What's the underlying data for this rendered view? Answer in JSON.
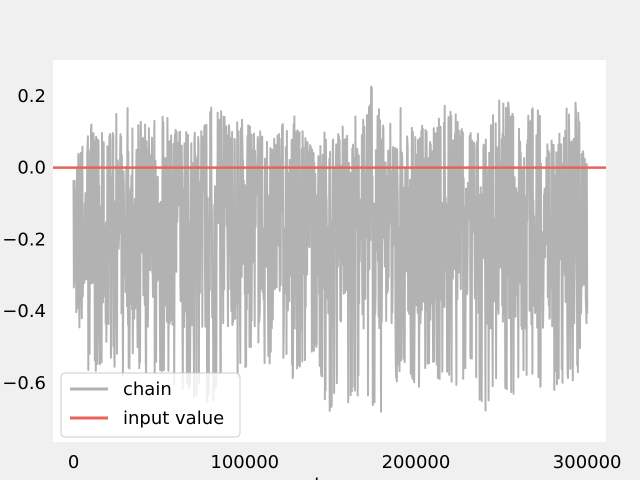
{
  "chart_data": {
    "type": "line",
    "title": "",
    "xlabel": "steps",
    "ylabel": "",
    "xlim": [
      -12000,
      311000
    ],
    "ylim": [
      -0.765,
      0.3
    ],
    "grid": false,
    "legend_position": "lower-left",
    "x_ticks": [
      0,
      100000,
      200000,
      300000
    ],
    "y_ticks": [
      0.2,
      0.0,
      -0.2,
      -0.4,
      -0.6
    ],
    "x_tick_labels": [
      "0",
      "100000",
      "200000",
      "300000"
    ],
    "y_tick_labels": [
      "0.2",
      "0.0",
      "−0.2",
      "−0.4",
      "−0.6"
    ],
    "series": [
      {
        "name": "chain",
        "color": "#b2b2b2",
        "x_range": [
          0,
          300000
        ],
        "typical_range": [
          -0.45,
          0.1
        ],
        "extreme_range": [
          -0.72,
          0.26
        ],
        "peak_highs": [
          [
            1500,
            0.02
          ],
          [
            8000,
            0.11
          ],
          [
            15000,
            0.14
          ],
          [
            22000,
            0.09
          ],
          [
            28000,
            0.21
          ],
          [
            35000,
            0.14
          ],
          [
            44000,
            0.12
          ],
          [
            52000,
            0.18
          ],
          [
            58000,
            0.13
          ],
          [
            66000,
            0.1
          ],
          [
            75000,
            0.12
          ],
          [
            82000,
            0.19
          ],
          [
            90000,
            0.13
          ],
          [
            98000,
            0.14
          ],
          [
            107000,
            0.12
          ],
          [
            112000,
            0.1
          ],
          [
            120000,
            0.11
          ],
          [
            128000,
            0.18
          ],
          [
            135000,
            0.1
          ],
          [
            142000,
            0.02
          ],
          [
            148000,
            0.13
          ],
          [
            155000,
            0.1
          ],
          [
            162000,
            0.19
          ],
          [
            168000,
            0.11
          ],
          [
            175000,
            0.26
          ],
          [
            182000,
            0.1
          ],
          [
            188000,
            0.22
          ],
          [
            195000,
            0.12
          ],
          [
            202000,
            0.12
          ],
          [
            210000,
            0.13
          ],
          [
            218000,
            0.18
          ],
          [
            225000,
            0.14
          ],
          [
            232000,
            0.1
          ],
          [
            240000,
            0.12
          ],
          [
            248000,
            0.19
          ],
          [
            255000,
            0.2
          ],
          [
            262000,
            0.12
          ],
          [
            270000,
            0.18
          ],
          [
            278000,
            0.07
          ],
          [
            285000,
            0.1
          ],
          [
            292000,
            0.26
          ],
          [
            299000,
            0.01
          ]
        ],
        "trough_lows": [
          [
            1500,
            -0.4
          ],
          [
            6000,
            -0.55
          ],
          [
            13000,
            -0.6
          ],
          [
            20000,
            -0.52
          ],
          [
            28000,
            -0.6
          ],
          [
            35000,
            -0.55
          ],
          [
            44000,
            -0.58
          ],
          [
            52000,
            -0.57
          ],
          [
            58000,
            -0.62
          ],
          [
            66000,
            -0.62
          ],
          [
            75000,
            -0.67
          ],
          [
            82000,
            -0.65
          ],
          [
            90000,
            -0.55
          ],
          [
            98000,
            -0.6
          ],
          [
            107000,
            -0.52
          ],
          [
            112000,
            -0.58
          ],
          [
            120000,
            -0.55
          ],
          [
            128000,
            -0.6
          ],
          [
            135000,
            -0.55
          ],
          [
            142000,
            -0.5
          ],
          [
            148000,
            -0.7
          ],
          [
            155000,
            -0.65
          ],
          [
            162000,
            -0.68
          ],
          [
            168000,
            -0.62
          ],
          [
            176000,
            -0.7
          ],
          [
            181000,
            -0.72
          ],
          [
            188000,
            -0.6
          ],
          [
            195000,
            -0.58
          ],
          [
            202000,
            -0.62
          ],
          [
            210000,
            -0.58
          ],
          [
            218000,
            -0.62
          ],
          [
            225000,
            -0.65
          ],
          [
            232000,
            -0.58
          ],
          [
            240000,
            -0.72
          ],
          [
            248000,
            -0.6
          ],
          [
            255000,
            -0.65
          ],
          [
            262000,
            -0.6
          ],
          [
            270000,
            -0.62
          ],
          [
            278000,
            -0.65
          ],
          [
            285000,
            -0.6
          ],
          [
            292000,
            -0.62
          ],
          [
            299000,
            -0.49
          ]
        ]
      },
      {
        "name": "input value",
        "color": "#e9635a",
        "value": 0.0
      }
    ]
  }
}
